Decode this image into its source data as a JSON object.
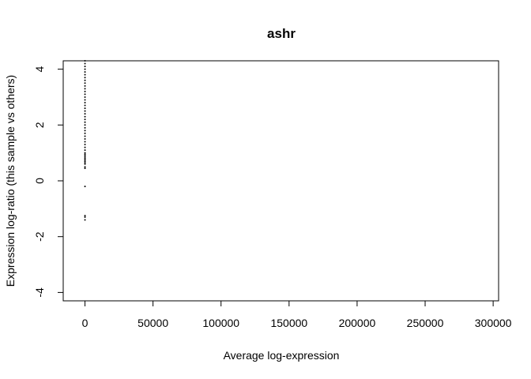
{
  "chart_data": {
    "type": "scatter",
    "title": "ashr",
    "xlabel": "Average log-expression",
    "ylabel": "Expression log-ratio (this sample vs others)",
    "xlim": [
      -16000,
      304000
    ],
    "ylim": [
      -4.3,
      4.3
    ],
    "x_ticks": [
      0,
      50000,
      100000,
      150000,
      200000,
      250000,
      300000
    ],
    "x_tick_labels": [
      "0",
      "50000",
      "100000",
      "150000",
      "200000",
      "250000",
      "300000"
    ],
    "y_ticks": [
      -4,
      -2,
      0,
      2,
      4
    ],
    "y_tick_labels": [
      "-4",
      "-2",
      "0",
      "2",
      "4"
    ],
    "grid": false,
    "legend": "none",
    "series": [
      {
        "color": "#000000",
        "points": [
          [
            0,
            4.3
          ],
          [
            0,
            4.2
          ],
          [
            0,
            4.1
          ],
          [
            0,
            4.0
          ],
          [
            0,
            3.9
          ],
          [
            0,
            3.8
          ],
          [
            0,
            3.7
          ],
          [
            0,
            3.6
          ],
          [
            0,
            3.5
          ],
          [
            0,
            3.4
          ],
          [
            0,
            3.3
          ],
          [
            0,
            3.2
          ],
          [
            0,
            3.1
          ],
          [
            0,
            3.0
          ],
          [
            0,
            2.9
          ],
          [
            0,
            2.8
          ],
          [
            0,
            2.7
          ],
          [
            0,
            2.6
          ],
          [
            0,
            2.5
          ],
          [
            0,
            2.4
          ],
          [
            0,
            2.3
          ],
          [
            0,
            2.2
          ],
          [
            0,
            2.1
          ],
          [
            0,
            2.0
          ],
          [
            0,
            1.9
          ],
          [
            0,
            1.8
          ],
          [
            0,
            1.7
          ],
          [
            0,
            1.6
          ],
          [
            0,
            1.5
          ],
          [
            0,
            1.4
          ],
          [
            0,
            1.3
          ],
          [
            0,
            1.2
          ],
          [
            0,
            1.1
          ],
          [
            0,
            1.0
          ],
          [
            0,
            0.95
          ],
          [
            0,
            0.9
          ],
          [
            0,
            0.85
          ],
          [
            0,
            0.8
          ],
          [
            0,
            0.75
          ],
          [
            0,
            0.7
          ],
          [
            0,
            0.65
          ],
          [
            0,
            0.6
          ],
          [
            0,
            0.5
          ],
          [
            0,
            0.45
          ],
          [
            0,
            -0.2
          ],
          [
            0,
            -1.25
          ],
          [
            0,
            -1.3
          ],
          [
            0,
            -1.4
          ]
        ]
      }
    ]
  }
}
